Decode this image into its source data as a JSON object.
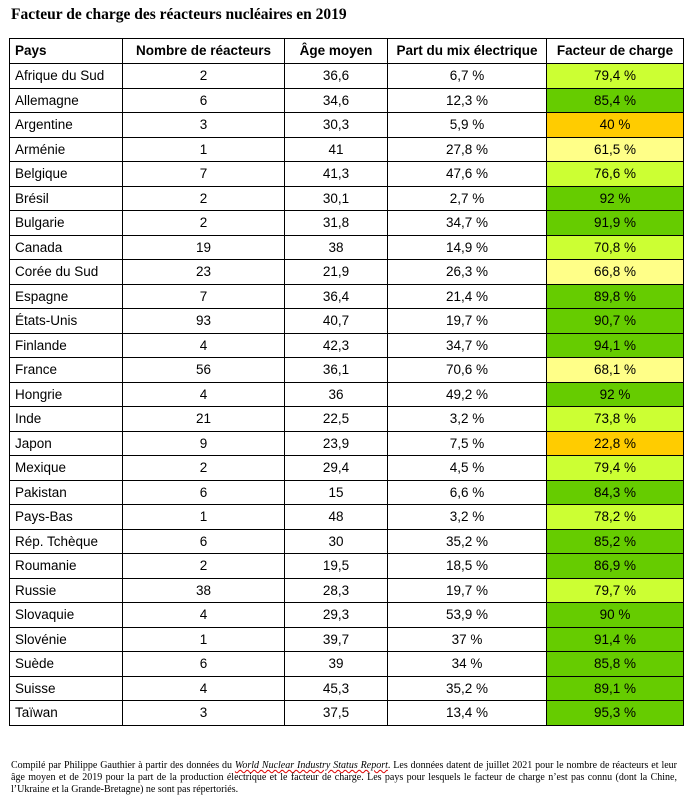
{
  "title": "Facteur de charge des réacteurs nucléaires en 2019",
  "colors": {
    "high": "#66cc00",
    "medium": "#ccff33",
    "low": "#ffff88",
    "very_low": "#ffcc00"
  },
  "table": {
    "headers": [
      "Pays",
      "Nombre de réacteurs",
      "Âge moyen",
      "Part du mix électrique",
      "Facteur de charge"
    ],
    "rows": [
      {
        "country": "Afrique du Sud",
        "reactors": "2",
        "age": "36,6",
        "share": "6,7 %",
        "load": "79,4 %",
        "level": "medium"
      },
      {
        "country": "Allemagne",
        "reactors": "6",
        "age": "34,6",
        "share": "12,3 %",
        "load": "85,4 %",
        "level": "high"
      },
      {
        "country": "Argentine",
        "reactors": "3",
        "age": "30,3",
        "share": "5,9 %",
        "load": "40 %",
        "level": "very_low"
      },
      {
        "country": "Arménie",
        "reactors": "1",
        "age": "41",
        "share": "27,8 %",
        "load": "61,5 %",
        "level": "low"
      },
      {
        "country": "Belgique",
        "reactors": "7",
        "age": "41,3",
        "share": "47,6 %",
        "load": "76,6 %",
        "level": "medium"
      },
      {
        "country": "Brésil",
        "reactors": "2",
        "age": "30,1",
        "share": "2,7 %",
        "load": "92 %",
        "level": "high"
      },
      {
        "country": "Bulgarie",
        "reactors": "2",
        "age": "31,8",
        "share": "34,7 %",
        "load": "91,9 %",
        "level": "high"
      },
      {
        "country": "Canada",
        "reactors": "19",
        "age": "38",
        "share": "14,9 %",
        "load": "70,8 %",
        "level": "medium"
      },
      {
        "country": "Corée du Sud",
        "reactors": "23",
        "age": "21,9",
        "share": "26,3 %",
        "load": "66,8 %",
        "level": "low"
      },
      {
        "country": "Espagne",
        "reactors": "7",
        "age": "36,4",
        "share": "21,4 %",
        "load": "89,8 %",
        "level": "high"
      },
      {
        "country": "États-Unis",
        "reactors": "93",
        "age": "40,7",
        "share": "19,7 %",
        "load": "90,7 %",
        "level": "high"
      },
      {
        "country": "Finlande",
        "reactors": "4",
        "age": "42,3",
        "share": "34,7 %",
        "load": "94,1 %",
        "level": "high"
      },
      {
        "country": "France",
        "reactors": "56",
        "age": "36,1",
        "share": "70,6 %",
        "load": "68,1 %",
        "level": "low"
      },
      {
        "country": "Hongrie",
        "reactors": "4",
        "age": "36",
        "share": "49,2 %",
        "load": "92 %",
        "level": "high"
      },
      {
        "country": "Inde",
        "reactors": "21",
        "age": "22,5",
        "share": "3,2 %",
        "load": "73,8 %",
        "level": "medium"
      },
      {
        "country": "Japon",
        "reactors": "9",
        "age": "23,9",
        "share": "7,5 %",
        "load": "22,8 %",
        "level": "very_low"
      },
      {
        "country": "Mexique",
        "reactors": "2",
        "age": "29,4",
        "share": "4,5 %",
        "load": "79,4 %",
        "level": "medium"
      },
      {
        "country": "Pakistan",
        "reactors": "6",
        "age": "15",
        "share": "6,6 %",
        "load": "84,3 %",
        "level": "high"
      },
      {
        "country": "Pays-Bas",
        "reactors": "1",
        "age": "48",
        "share": "3,2 %",
        "load": "78,2 %",
        "level": "medium"
      },
      {
        "country": "Rép. Tchèque",
        "reactors": "6",
        "age": "30",
        "share": "35,2 %",
        "load": "85,2 %",
        "level": "high"
      },
      {
        "country": "Roumanie",
        "reactors": "2",
        "age": "19,5",
        "share": "18,5 %",
        "load": "86,9 %",
        "level": "high"
      },
      {
        "country": "Russie",
        "reactors": "38",
        "age": "28,3",
        "share": "19,7 %",
        "load": "79,7 %",
        "level": "medium"
      },
      {
        "country": "Slovaquie",
        "reactors": "4",
        "age": "29,3",
        "share": "53,9 %",
        "load": "90 %",
        "level": "high"
      },
      {
        "country": "Slovénie",
        "reactors": "1",
        "age": "39,7",
        "share": "37 %",
        "load": "91,4 %",
        "level": "high"
      },
      {
        "country": "Suède",
        "reactors": "6",
        "age": "39",
        "share": "34 %",
        "load": "85,8 %",
        "level": "high"
      },
      {
        "country": "Suisse",
        "reactors": "4",
        "age": "45,3",
        "share": "35,2 %",
        "load": "89,1 %",
        "level": "high"
      },
      {
        "country": "Taïwan",
        "reactors": "3",
        "age": "37,5",
        "share": "13,4 %",
        "load": "95,3 %",
        "level": "high"
      }
    ]
  },
  "note": {
    "before": "Compilé par Philippe Gauthier à partir des données du ",
    "source": "World Nuclear Industry Status Report",
    "after": ". Les données datent de juillet 2021 pour le nombre de réacteurs et leur âge moyen et de 2019 pour la part de la production électrique et le facteur de charge. Les pays pour lesquels le facteur de charge n’est pas connu (dont la Chine, l’Ukraine et la Grande-Bretagne) ne sont pas répertoriés."
  }
}
